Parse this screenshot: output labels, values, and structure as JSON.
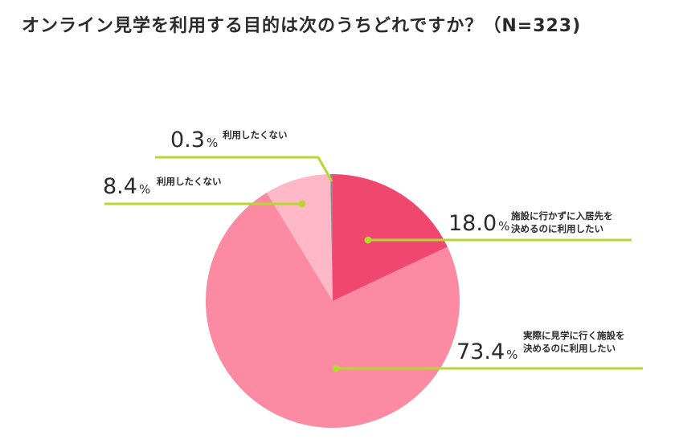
{
  "chart_data": {
    "type": "pie",
    "title": "オンライン見学を利用する目的は次のうちどれですか？（N=323)",
    "percent_unit": "%",
    "start_angle_deg": 0,
    "direction": "clockwise",
    "slices": [
      {
        "value": 18.0,
        "value_text": "18.0",
        "label_lines": [
          "施設に行かずに入居先を",
          "決めるのに利用したい"
        ],
        "color": "#f0476f"
      },
      {
        "value": 73.4,
        "value_text": "73.4",
        "label_lines": [
          "実際に見学に行く施設を",
          "決めるのに利用したい"
        ],
        "color": "#fc8aa3"
      },
      {
        "value": 8.4,
        "value_text": "8.4",
        "label_lines": [
          "利用したくない"
        ],
        "color": "#ffb8c8"
      },
      {
        "value": 0.3,
        "value_text": "0.3",
        "label_lines": [
          "利用したくない"
        ],
        "color": "#8c8c8c"
      }
    ],
    "leader_color": "#b9d531"
  }
}
